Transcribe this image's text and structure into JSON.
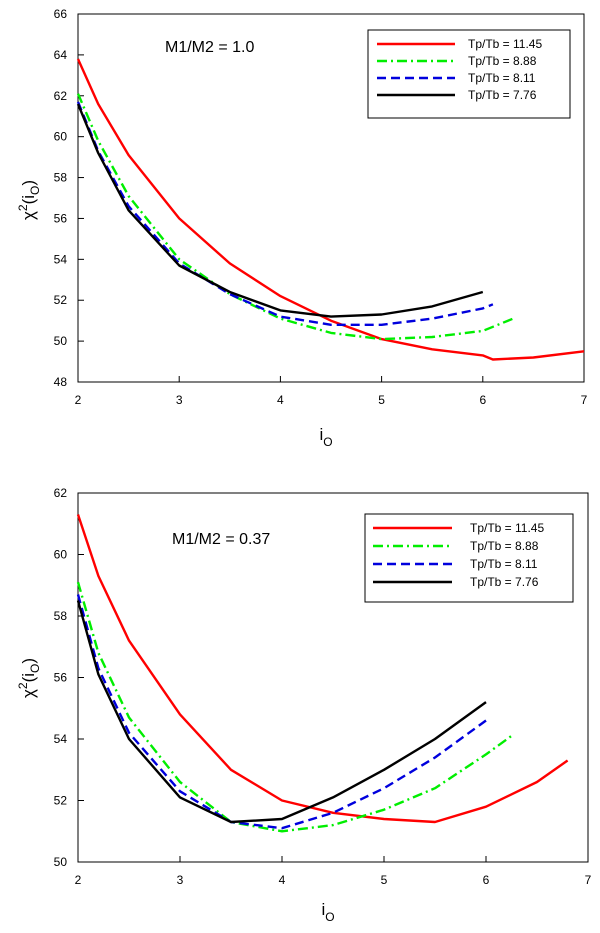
{
  "chart_data": [
    {
      "type": "line",
      "title": "",
      "annotation": "M1/M2 = 1.0",
      "xlabel_main": "i",
      "xlabel_sub": "O",
      "ylabel_main": "χ",
      "ylabel_sup": "2",
      "ylabel_paren_open": "(i",
      "ylabel_sub": "O",
      "ylabel_paren_close": ")",
      "xlim": [
        2,
        7
      ],
      "ylim": [
        48,
        66
      ],
      "xticks": [
        2,
        3,
        4,
        5,
        6,
        7
      ],
      "yticks": [
        48,
        50,
        52,
        54,
        56,
        58,
        60,
        62,
        64,
        66
      ],
      "legend_position": "top-right",
      "series": [
        {
          "name": "Tp/Tb = 11.45",
          "color": "#ff0000",
          "dash": "solid",
          "x": [
            2.0,
            2.2,
            2.5,
            3.0,
            3.5,
            4.0,
            4.5,
            5.0,
            5.5,
            6.0,
            6.1,
            6.5,
            7.0
          ],
          "y": [
            63.8,
            61.6,
            59.1,
            56.0,
            53.8,
            52.2,
            51.0,
            50.1,
            49.6,
            49.3,
            49.1,
            49.2,
            49.5
          ]
        },
        {
          "name": "Tp/Tb = 8.88",
          "color": "#00ee00",
          "dash": "dashdot",
          "x": [
            2.0,
            2.2,
            2.5,
            3.0,
            3.5,
            4.0,
            4.5,
            5.0,
            5.5,
            6.0,
            6.3
          ],
          "y": [
            62.1,
            59.8,
            57.1,
            54.0,
            52.3,
            51.1,
            50.4,
            50.1,
            50.2,
            50.5,
            51.1
          ]
        },
        {
          "name": "Tp/Tb = 8.11",
          "color": "#0000dd",
          "dash": "dash",
          "x": [
            2.0,
            2.2,
            2.5,
            3.0,
            3.5,
            4.0,
            4.5,
            5.0,
            5.5,
            6.0,
            6.1
          ],
          "y": [
            61.7,
            59.3,
            56.6,
            53.8,
            52.3,
            51.2,
            50.8,
            50.8,
            51.1,
            51.6,
            51.8
          ]
        },
        {
          "name": "Tp/Tb = 7.76",
          "color": "#000000",
          "dash": "solid",
          "x": [
            2.0,
            2.2,
            2.5,
            3.0,
            3.5,
            4.0,
            4.5,
            5.0,
            5.5,
            6.0
          ],
          "y": [
            61.6,
            59.2,
            56.4,
            53.7,
            52.4,
            51.5,
            51.2,
            51.3,
            51.7,
            52.4
          ]
        }
      ]
    },
    {
      "type": "line",
      "title": "",
      "annotation": "M1/M2 = 0.37",
      "xlabel_main": "i",
      "xlabel_sub": "O",
      "ylabel_main": "χ",
      "ylabel_sup": "2",
      "ylabel_paren_open": "(i",
      "ylabel_sub": "O",
      "ylabel_paren_close": ")",
      "xlim": [
        2,
        7
      ],
      "ylim": [
        50,
        62
      ],
      "xticks": [
        2,
        3,
        4,
        5,
        6,
        7
      ],
      "yticks": [
        50,
        52,
        54,
        56,
        58,
        60,
        62
      ],
      "legend_position": "top-right",
      "series": [
        {
          "name": "Tp/Tb = 11.45",
          "color": "#ff0000",
          "dash": "solid",
          "x": [
            2.0,
            2.2,
            2.5,
            3.0,
            3.5,
            4.0,
            4.5,
            5.0,
            5.5,
            6.0,
            6.5,
            6.8
          ],
          "y": [
            61.3,
            59.3,
            57.2,
            54.8,
            53.0,
            52.0,
            51.6,
            51.4,
            51.3,
            51.8,
            52.6,
            53.3
          ]
        },
        {
          "name": "Tp/Tb = 8.88",
          "color": "#00ee00",
          "dash": "dashdot",
          "x": [
            2.0,
            2.2,
            2.5,
            3.0,
            3.5,
            4.0,
            4.5,
            5.0,
            5.5,
            6.0,
            6.25
          ],
          "y": [
            59.1,
            56.8,
            54.7,
            52.6,
            51.3,
            51.0,
            51.2,
            51.7,
            52.4,
            53.5,
            54.1
          ]
        },
        {
          "name": "Tp/Tb = 8.11",
          "color": "#0000dd",
          "dash": "dash",
          "x": [
            2.0,
            2.2,
            2.5,
            3.0,
            3.5,
            4.0,
            4.5,
            5.0,
            5.5,
            6.0
          ],
          "y": [
            58.7,
            56.3,
            54.2,
            52.3,
            51.3,
            51.1,
            51.6,
            52.4,
            53.4,
            54.6
          ]
        },
        {
          "name": "Tp/Tb = 7.76",
          "color": "#000000",
          "dash": "solid",
          "x": [
            2.0,
            2.2,
            2.5,
            3.0,
            3.5,
            4.0,
            4.5,
            5.0,
            5.5,
            6.0
          ],
          "y": [
            58.5,
            56.1,
            54.0,
            52.1,
            51.3,
            51.4,
            52.1,
            53.0,
            54.0,
            55.2
          ]
        }
      ]
    }
  ]
}
